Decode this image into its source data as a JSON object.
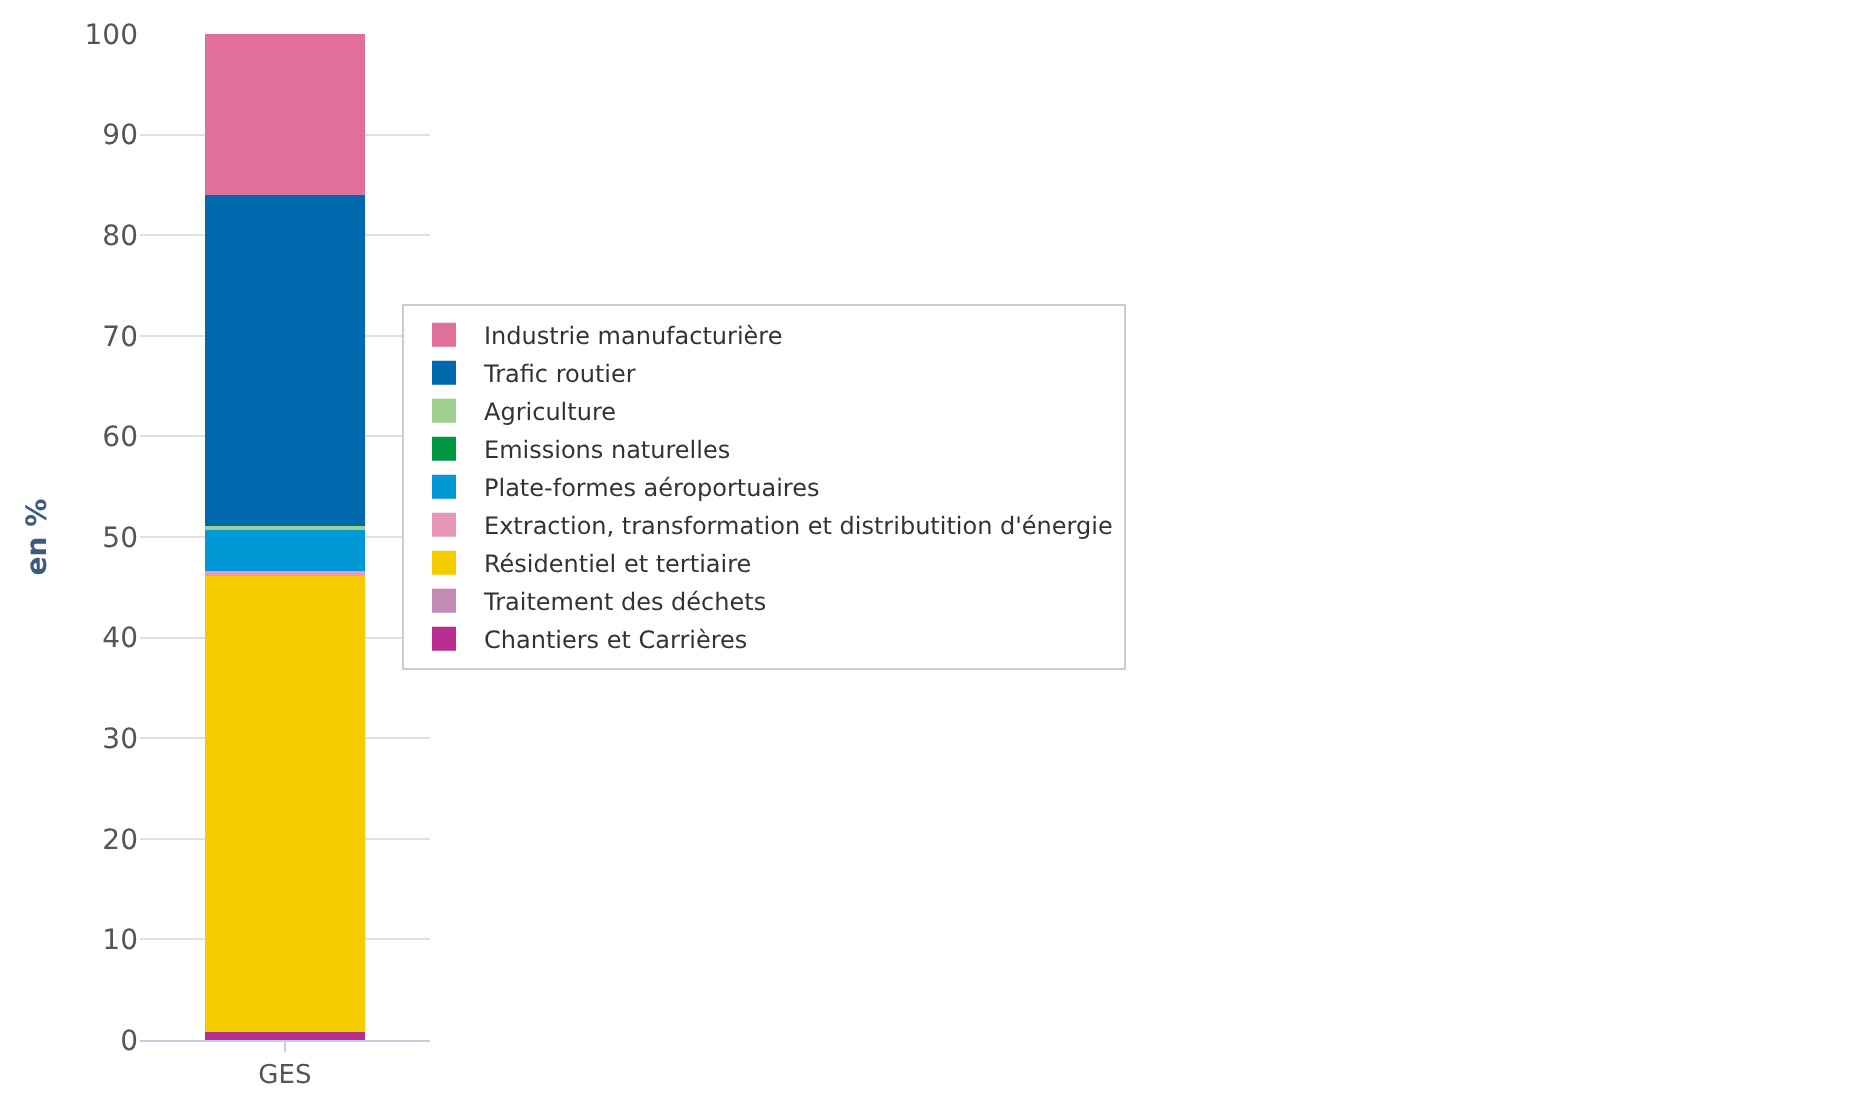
{
  "chart_data": {
    "type": "bar",
    "stacked": true,
    "ylabel": "en %",
    "categories": [
      "GES"
    ],
    "ylim": [
      0,
      100
    ],
    "yticks": [
      0,
      10,
      20,
      30,
      40,
      50,
      60,
      70,
      80,
      90,
      100
    ],
    "grid": "y",
    "legend": "right",
    "series": [
      {
        "name": "Chantiers et Carrières",
        "color": "#b82d8f",
        "values": [
          0.8
        ]
      },
      {
        "name": "Traitement des déchets",
        "color": "#c28ab5",
        "values": [
          0.0
        ]
      },
      {
        "name": "Résidentiel et tertiaire",
        "color": "#f5cc00",
        "values": [
          45.3
        ]
      },
      {
        "name": "Extraction, transformation et distributition d'énergie",
        "color": "#e897b9",
        "values": [
          0.5
        ]
      },
      {
        "name": "Plate-formes aéroportuaires",
        "color": "#0099d6",
        "values": [
          4.2
        ]
      },
      {
        "name": "Emissions naturelles",
        "color": "#00963f",
        "values": [
          0.0
        ]
      },
      {
        "name": "Agriculture",
        "color": "#9fcf8f",
        "values": [
          0.3
        ]
      },
      {
        "name": "Trafic routier",
        "color": "#0068ad",
        "values": [
          32.9
        ]
      },
      {
        "name": "Industrie manufacturière",
        "color": "#e0709a",
        "values": [
          16.0
        ]
      }
    ]
  }
}
